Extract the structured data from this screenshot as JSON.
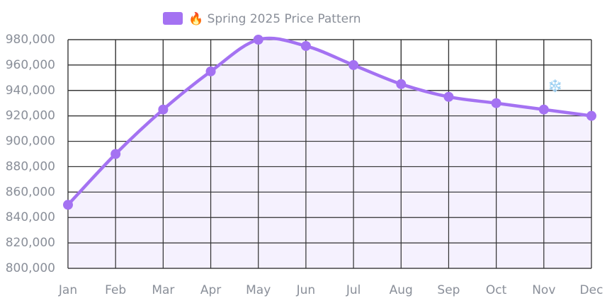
{
  "chart_data": {
    "type": "line",
    "categories": [
      "Jan",
      "Feb",
      "Mar",
      "Apr",
      "May",
      "Jun",
      "Jul",
      "Aug",
      "Sep",
      "Oct",
      "Nov",
      "Dec"
    ],
    "series": [
      {
        "name": "🔥 Spring 2025 Price Pattern",
        "color": "#a472f2",
        "values": [
          850000,
          890000,
          925000,
          955000,
          980000,
          975000,
          960000,
          945000,
          935000,
          930000,
          925000,
          920000
        ]
      }
    ],
    "ylim": [
      800000,
      980000
    ],
    "yticks": [
      {
        "value": 800000,
        "label": "800,000"
      },
      {
        "value": 820000,
        "label": "820,000"
      },
      {
        "value": 840000,
        "label": "840,000"
      },
      {
        "value": 860000,
        "label": "860,000"
      },
      {
        "value": 880000,
        "label": "880,000"
      },
      {
        "value": 900000,
        "label": "900,000"
      },
      {
        "value": 920000,
        "label": "920,000"
      },
      {
        "value": 940000,
        "label": "940,000"
      },
      {
        "value": 960000,
        "label": "960,000"
      },
      {
        "value": 980000,
        "label": "980,000"
      }
    ],
    "grid": true,
    "smooth": true,
    "area": true,
    "area_color": "#f3eefe",
    "annotations": [
      {
        "text": "❄️",
        "category": "Nov",
        "value": 940000
      }
    ]
  }
}
